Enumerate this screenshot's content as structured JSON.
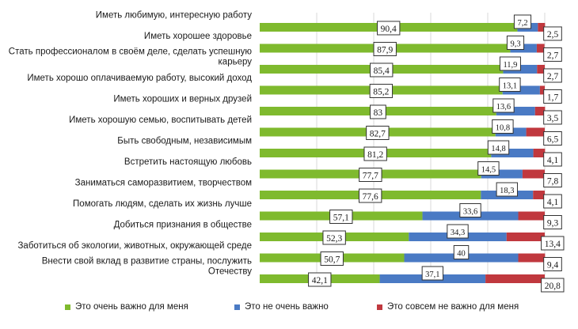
{
  "chart_data": {
    "type": "bar",
    "orientation": "horizontal",
    "stacked": true,
    "grid": true,
    "legend_position": "bottom",
    "categories": [
      "Иметь любимую, интересную работу",
      "Иметь хорошее здоровье",
      "Стать профессионалом в своём деле, сделать успешную карьеру",
      "Иметь хорошо оплачиваемую работу, высокий доход",
      "Иметь хороших и верных друзей",
      "Иметь хорошую семью, воспитывать детей",
      "Быть свободным, независимым",
      "Встретить настоящую любовь",
      "Заниматься саморазвитием, творчеством",
      "Помогать людям, сделать их жизнь лучше",
      "Добиться признания в обществе",
      "Заботиться об экологии, животных, окружающей среде",
      "Внести свой вклад в развитие страны, послужить Отечеству"
    ],
    "category_lines": [
      [
        "Иметь любимую, интересную работу"
      ],
      [
        "Иметь хорошее здоровье"
      ],
      [
        "Стать профессионалом в своём деле, сделать успешную",
        "карьеру"
      ],
      [
        "Иметь хорошо оплачиваемую работу, высокий доход"
      ],
      [
        "Иметь хороших и верных друзей"
      ],
      [
        "Иметь хорошую семью, воспитывать детей"
      ],
      [
        "Быть свободным, независимым"
      ],
      [
        "Встретить настоящую любовь"
      ],
      [
        "Заниматься саморазвитием, творчеством"
      ],
      [
        "Помогать людям, сделать их жизнь лучше"
      ],
      [
        "Добиться признания в обществе"
      ],
      [
        "Заботиться об экологии, животных, окружающей среде"
      ],
      [
        "Внести свой вклад в развитие страны, послужить",
        "Отечеству"
      ]
    ],
    "series": [
      {
        "name": "Это очень важно для меня",
        "color": "#7fba2e",
        "values": [
          90.4,
          87.9,
          85.4,
          85.2,
          83,
          82.7,
          81.2,
          77.7,
          77.6,
          57.1,
          52.3,
          50.7,
          42.1
        ],
        "labels": [
          "90,4",
          "87,9",
          "85,4",
          "85,2",
          "83",
          "82,7",
          "81,2",
          "77,7",
          "77,6",
          "57,1",
          "52,3",
          "50,7",
          "42,1"
        ]
      },
      {
        "name": "Это не очень важно",
        "color": "#4a7ac4",
        "values": [
          7.2,
          9.3,
          11.9,
          13.1,
          13.6,
          10.8,
          14.8,
          14.5,
          18.3,
          33.6,
          34.3,
          40,
          37.1
        ],
        "labels": [
          "7,2",
          "9,3",
          "11,9",
          "13,1",
          "13,6",
          "10,8",
          "14,8",
          "14,5",
          "18,3",
          "33,6",
          "34,3",
          "40",
          "37,1"
        ]
      },
      {
        "name": "Это совсем не важно для меня",
        "color": "#c0383e",
        "values": [
          2.5,
          2.7,
          2.7,
          1.7,
          3.5,
          6.5,
          4.1,
          7.8,
          4.1,
          9.3,
          13.4,
          9.4,
          20.8
        ],
        "labels": [
          "2,5",
          "2,7",
          "2,7",
          "1,7",
          "3,5",
          "6,5",
          "4,1",
          "7,8",
          "4,1",
          "9,3",
          "13,4",
          "9,4",
          "20,8"
        ]
      }
    ],
    "xlim": [
      0,
      100
    ]
  }
}
